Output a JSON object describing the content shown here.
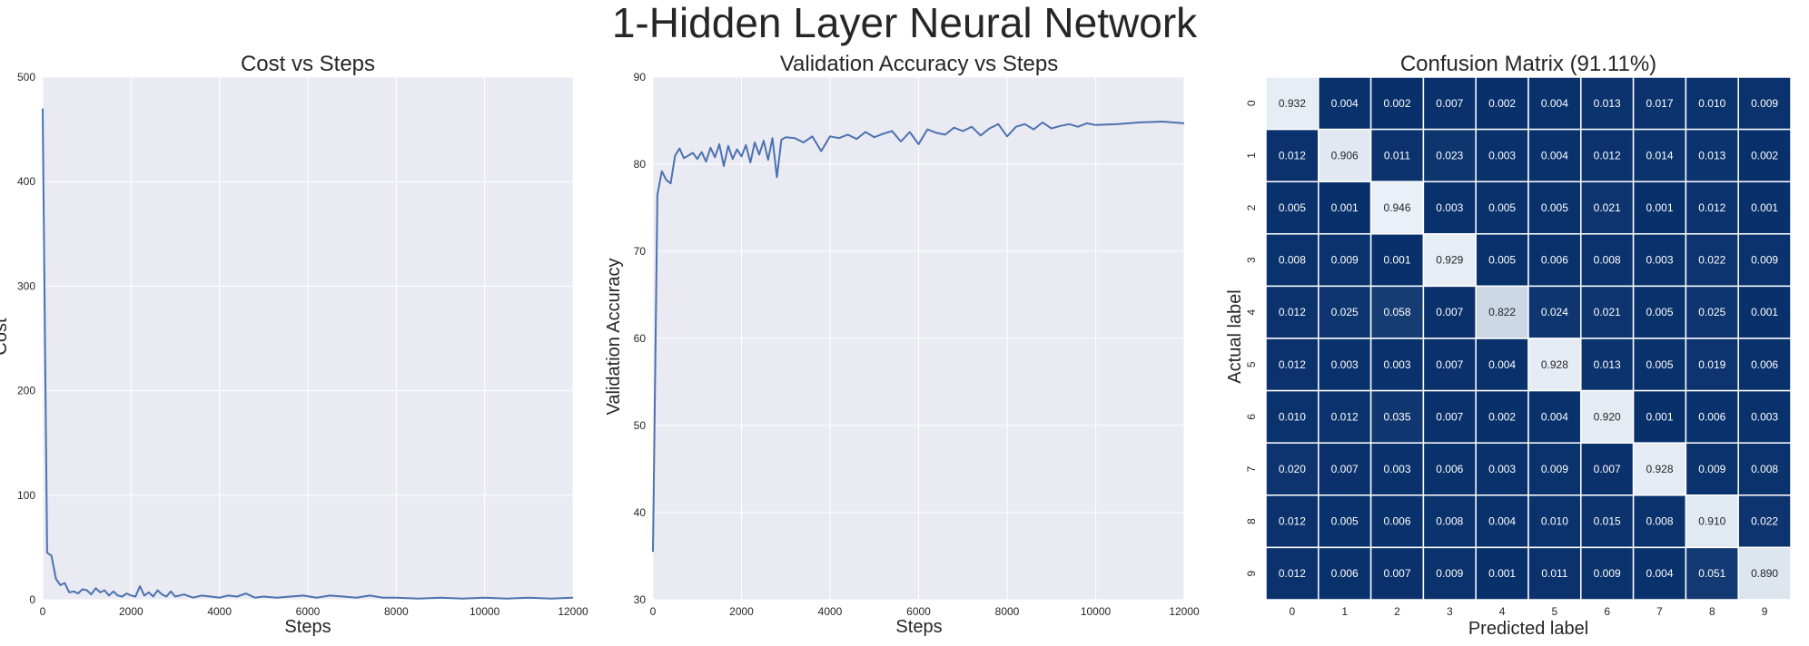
{
  "figure": {
    "suptitle": "1-Hidden Layer Neural Network"
  },
  "chart_data": [
    {
      "type": "line",
      "title": "Cost vs Steps",
      "xlabel": "Steps",
      "ylabel": "Cost",
      "xlim": [
        0,
        12000
      ],
      "ylim": [
        0,
        500
      ],
      "xticks": [
        "0",
        "2000",
        "4000",
        "6000",
        "8000",
        "10000",
        "12000"
      ],
      "yticks": [
        "0",
        "100",
        "200",
        "300",
        "400",
        "500"
      ],
      "grid": true,
      "color": "#4c72b0",
      "x": [
        0,
        100,
        200,
        300,
        400,
        500,
        600,
        700,
        800,
        900,
        1000,
        1100,
        1200,
        1300,
        1400,
        1500,
        1600,
        1700,
        1800,
        1900,
        2000,
        2100,
        2200,
        2300,
        2400,
        2500,
        2600,
        2700,
        2800,
        2900,
        3000,
        3200,
        3400,
        3600,
        3800,
        4000,
        4200,
        4400,
        4600,
        4800,
        5000,
        5300,
        5600,
        5900,
        6200,
        6500,
        6800,
        7100,
        7400,
        7700,
        8000,
        8500,
        9000,
        9500,
        10000,
        10500,
        11000,
        11500,
        12000
      ],
      "y": [
        470,
        45,
        42,
        20,
        14,
        16,
        7,
        8,
        6,
        10,
        9,
        5,
        11,
        7,
        9,
        4,
        8,
        4,
        3,
        6,
        4,
        3,
        13,
        4,
        7,
        3,
        9,
        5,
        3,
        8,
        3,
        5,
        2,
        4,
        3,
        2,
        4,
        3,
        6,
        2,
        3,
        2,
        3,
        4,
        2,
        4,
        3,
        2,
        4,
        2,
        2,
        1,
        2,
        1,
        2,
        1,
        2,
        1,
        2
      ]
    },
    {
      "type": "line",
      "title": "Validation Accuracy vs Steps",
      "xlabel": "Steps",
      "ylabel": "Validation Accuracy",
      "xlim": [
        0,
        12000
      ],
      "ylim": [
        30,
        90
      ],
      "xticks": [
        "0",
        "2000",
        "4000",
        "6000",
        "8000",
        "10000",
        "12000"
      ],
      "yticks": [
        "30",
        "40",
        "50",
        "60",
        "70",
        "80",
        "90"
      ],
      "grid": true,
      "color": "#4c72b0",
      "x": [
        0,
        100,
        200,
        300,
        400,
        500,
        600,
        700,
        800,
        900,
        1000,
        1100,
        1200,
        1300,
        1400,
        1500,
        1600,
        1700,
        1800,
        1900,
        2000,
        2100,
        2200,
        2300,
        2400,
        2500,
        2600,
        2700,
        2800,
        2900,
        3000,
        3200,
        3400,
        3600,
        3800,
        4000,
        4200,
        4400,
        4600,
        4800,
        5000,
        5200,
        5400,
        5600,
        5800,
        6000,
        6200,
        6400,
        6600,
        6800,
        7000,
        7200,
        7400,
        7600,
        7800,
        8000,
        8200,
        8400,
        8600,
        8800,
        9000,
        9200,
        9400,
        9600,
        9800,
        10000,
        10500,
        11000,
        11500,
        12000
      ],
      "y": [
        35.5,
        76.5,
        79.2,
        78.2,
        77.8,
        81.0,
        81.8,
        80.7,
        81.0,
        81.3,
        80.6,
        81.4,
        80.3,
        81.9,
        80.8,
        82.3,
        79.8,
        82.1,
        80.6,
        81.7,
        80.9,
        82.2,
        80.2,
        82.5,
        81.1,
        82.7,
        80.5,
        83.0,
        78.5,
        82.8,
        83.1,
        83.0,
        82.5,
        83.2,
        81.5,
        83.2,
        83.0,
        83.4,
        82.9,
        83.7,
        83.1,
        83.5,
        83.8,
        82.6,
        83.7,
        82.3,
        84.0,
        83.6,
        83.4,
        84.2,
        83.8,
        84.3,
        83.3,
        84.1,
        84.6,
        83.2,
        84.3,
        84.6,
        84.0,
        84.8,
        84.1,
        84.4,
        84.6,
        84.3,
        84.7,
        84.5,
        84.6,
        84.8,
        84.9,
        84.7
      ]
    },
    {
      "type": "heatmap",
      "title": "Confusion Matrix (91.11%)",
      "xlabel": "Predicted label",
      "ylabel": "Actual label",
      "x_categories": [
        "0",
        "1",
        "2",
        "3",
        "4",
        "5",
        "6",
        "7",
        "8",
        "9"
      ],
      "y_categories": [
        "0",
        "1",
        "2",
        "3",
        "4",
        "5",
        "6",
        "7",
        "8",
        "9"
      ],
      "colormap": {
        "low": "#08306b",
        "high": "#f7fbff"
      },
      "values": [
        [
          0.932,
          0.004,
          0.002,
          0.007,
          0.002,
          0.004,
          0.013,
          0.017,
          0.01,
          0.009
        ],
        [
          0.012,
          0.906,
          0.011,
          0.023,
          0.003,
          0.004,
          0.012,
          0.014,
          0.013,
          0.002
        ],
        [
          0.005,
          0.001,
          0.946,
          0.003,
          0.005,
          0.005,
          0.021,
          0.001,
          0.012,
          0.001
        ],
        [
          0.008,
          0.009,
          0.001,
          0.929,
          0.005,
          0.006,
          0.008,
          0.003,
          0.022,
          0.009
        ],
        [
          0.012,
          0.025,
          0.058,
          0.007,
          0.822,
          0.024,
          0.021,
          0.005,
          0.025,
          0.001
        ],
        [
          0.012,
          0.003,
          0.003,
          0.007,
          0.004,
          0.928,
          0.013,
          0.005,
          0.019,
          0.006
        ],
        [
          0.01,
          0.012,
          0.035,
          0.007,
          0.002,
          0.004,
          0.92,
          0.001,
          0.006,
          0.003
        ],
        [
          0.02,
          0.007,
          0.003,
          0.006,
          0.003,
          0.009,
          0.007,
          0.928,
          0.009,
          0.008
        ],
        [
          0.012,
          0.005,
          0.006,
          0.008,
          0.004,
          0.01,
          0.015,
          0.008,
          0.91,
          0.022
        ],
        [
          0.012,
          0.006,
          0.007,
          0.009,
          0.001,
          0.011,
          0.009,
          0.004,
          0.051,
          0.89
        ]
      ]
    }
  ]
}
